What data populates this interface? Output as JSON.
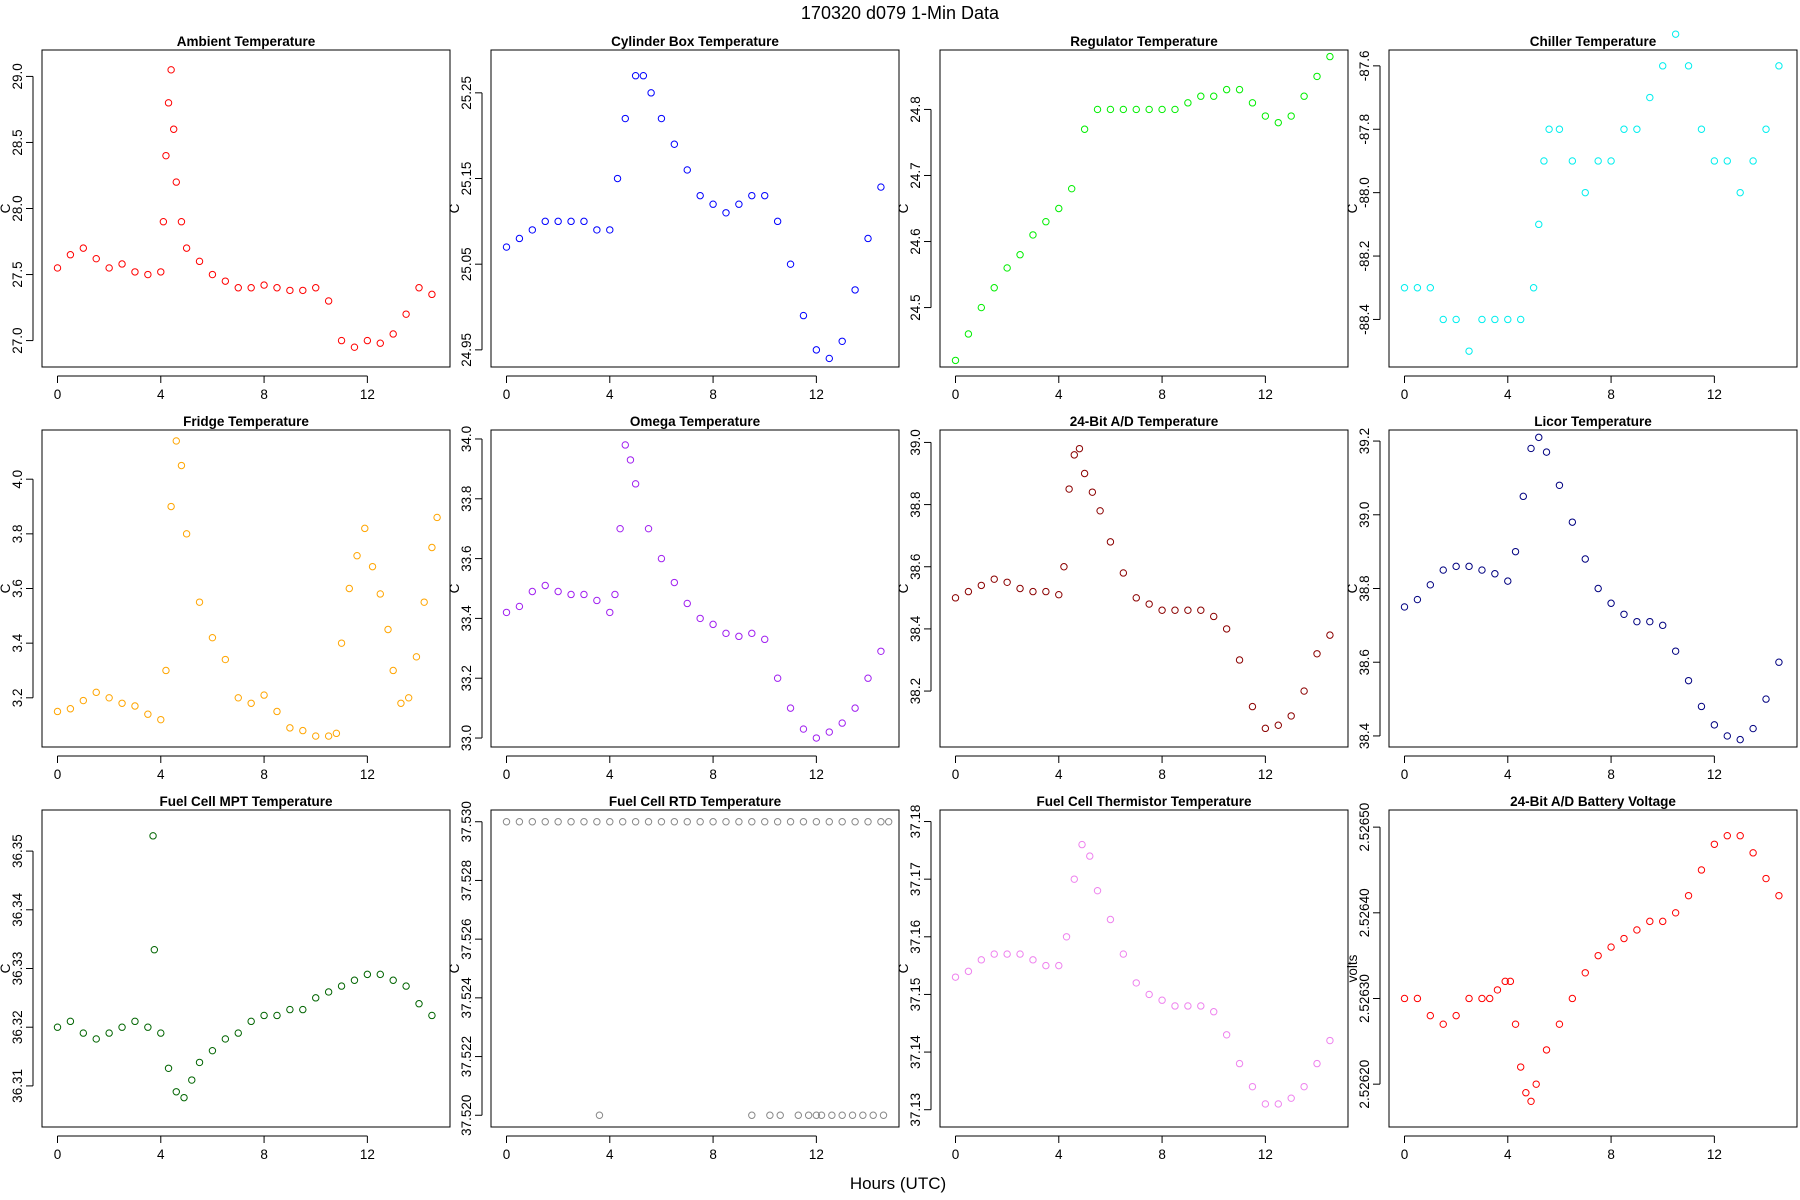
{
  "figure": {
    "title": "170320   d079   1-Min Data",
    "xlabel": "Hours (UTC)"
  },
  "chart_data": [
    {
      "type": "scatter",
      "title": "Ambient Temperature",
      "ylabel": "C",
      "color": "#ff0000",
      "xlim": [
        -0.6,
        15.2
      ],
      "ylim": [
        26.8,
        29.2
      ],
      "xticks": [
        0,
        4,
        8,
        12
      ],
      "yticks": [
        27.0,
        27.5,
        28.0,
        28.5,
        29.0
      ],
      "ytick_labels": [
        "27.0",
        "27.5",
        "28.0",
        "28.5",
        "29.0"
      ],
      "x": [
        0,
        0.5,
        1,
        1.5,
        2,
        2.5,
        3,
        3.5,
        4,
        4.1,
        4.2,
        4.3,
        4.4,
        4.5,
        4.6,
        4.8,
        5,
        5.5,
        6,
        6.5,
        7,
        7.5,
        8,
        8.5,
        9,
        9.5,
        10,
        10.5,
        11,
        11.5,
        12,
        12.5,
        13,
        13.5,
        14,
        14.5
      ],
      "y": [
        27.55,
        27.65,
        27.7,
        27.62,
        27.55,
        27.58,
        27.52,
        27.5,
        27.52,
        27.9,
        28.4,
        28.8,
        29.05,
        28.6,
        28.2,
        27.9,
        27.7,
        27.6,
        27.5,
        27.45,
        27.4,
        27.4,
        27.42,
        27.4,
        27.38,
        27.38,
        27.4,
        27.3,
        27.0,
        26.95,
        27.0,
        26.98,
        27.05,
        27.2,
        27.4,
        27.35
      ]
    },
    {
      "type": "scatter",
      "title": "Cylinder Box Temperature",
      "ylabel": "C",
      "color": "#0000ff",
      "xlim": [
        -0.6,
        15.2
      ],
      "ylim": [
        24.93,
        25.3
      ],
      "xticks": [
        0,
        4,
        8,
        12
      ],
      "yticks": [
        24.95,
        25.05,
        25.15,
        25.25
      ],
      "ytick_labels": [
        "24.95",
        "25.05",
        "25.15",
        "25.25"
      ],
      "x": [
        0,
        0.5,
        1,
        1.5,
        2,
        2.5,
        3,
        3.5,
        4,
        4.3,
        4.6,
        5,
        5.3,
        5.6,
        6,
        6.5,
        7,
        7.5,
        8,
        8.5,
        9,
        9.5,
        10,
        10.5,
        11,
        11.5,
        12,
        12.5,
        13,
        13.5,
        14,
        14.5
      ],
      "y": [
        25.07,
        25.08,
        25.09,
        25.1,
        25.1,
        25.1,
        25.1,
        25.09,
        25.09,
        25.15,
        25.22,
        25.27,
        25.27,
        25.25,
        25.22,
        25.19,
        25.16,
        25.13,
        25.12,
        25.11,
        25.12,
        25.13,
        25.13,
        25.1,
        25.05,
        24.99,
        24.95,
        24.94,
        24.96,
        25.02,
        25.08,
        25.14
      ]
    },
    {
      "type": "scatter",
      "title": "Regulator Temperature",
      "ylabel": "C",
      "color": "#00ee00",
      "xlim": [
        -0.6,
        15.2
      ],
      "ylim": [
        24.41,
        24.89
      ],
      "xticks": [
        0,
        4,
        8,
        12
      ],
      "yticks": [
        24.5,
        24.6,
        24.7,
        24.8
      ],
      "ytick_labels": [
        "24.5",
        "24.6",
        "24.7",
        "24.8"
      ],
      "x": [
        0,
        0.5,
        1,
        1.5,
        2,
        2.5,
        3,
        3.5,
        4,
        4.5,
        5,
        5.5,
        6,
        6.5,
        7,
        7.5,
        8,
        8.5,
        9,
        9.5,
        10,
        10.5,
        11,
        11.5,
        12,
        12.5,
        13,
        13.5,
        14,
        14.5
      ],
      "y": [
        24.42,
        24.46,
        24.5,
        24.53,
        24.56,
        24.58,
        24.61,
        24.63,
        24.65,
        24.68,
        24.77,
        24.8,
        24.8,
        24.8,
        24.8,
        24.8,
        24.8,
        24.8,
        24.81,
        24.82,
        24.82,
        24.83,
        24.83,
        24.81,
        24.79,
        24.78,
        24.79,
        24.82,
        24.85,
        24.88
      ]
    },
    {
      "type": "scatter",
      "title": "Chiller Temperature",
      "ylabel": "C",
      "color": "#00eeee",
      "xlim": [
        -0.6,
        15.2
      ],
      "ylim": [
        -88.55,
        -87.55
      ],
      "xticks": [
        0,
        4,
        8,
        12
      ],
      "yticks": [
        -88.4,
        -88.2,
        -88.0,
        -87.8,
        -87.6
      ],
      "ytick_labels": [
        "-88.4",
        "-88.2",
        "-88.0",
        "-87.8",
        "-87.6"
      ],
      "x": [
        0,
        0.5,
        1,
        1.5,
        2,
        2.5,
        3,
        3.5,
        4,
        4.5,
        5,
        5.2,
        5.4,
        5.6,
        6,
        6.5,
        7,
        7.5,
        8,
        8.5,
        9,
        9.5,
        10,
        10.5,
        11,
        11.5,
        12,
        12.5,
        13,
        13.5,
        14,
        14.5
      ],
      "y": [
        -88.3,
        -88.3,
        -88.3,
        -88.4,
        -88.4,
        -88.5,
        -88.4,
        -88.4,
        -88.4,
        -88.4,
        -88.3,
        -88.1,
        -87.9,
        -87.8,
        -87.8,
        -87.9,
        -88.0,
        -87.9,
        -87.9,
        -87.8,
        -87.8,
        -87.7,
        -87.6,
        -87.5,
        -87.6,
        -87.8,
        -87.9,
        -87.9,
        -88.0,
        -87.9,
        -87.8,
        -87.6
      ]
    },
    {
      "type": "scatter",
      "title": "Fridge Temperature",
      "ylabel": "C",
      "color": "#ffa500",
      "xlim": [
        -0.6,
        15.2
      ],
      "ylim": [
        3.02,
        4.18
      ],
      "xticks": [
        0,
        4,
        8,
        12
      ],
      "yticks": [
        3.2,
        3.4,
        3.6,
        3.8,
        4.0
      ],
      "ytick_labels": [
        "3.2",
        "3.4",
        "3.6",
        "3.8",
        "4.0"
      ],
      "x": [
        0,
        0.5,
        1,
        1.5,
        2,
        2.5,
        3,
        3.5,
        4,
        4.2,
        4.4,
        4.6,
        4.8,
        5,
        5.5,
        6,
        6.5,
        7,
        7.5,
        8,
        8.5,
        9,
        9.5,
        10,
        10.5,
        10.8,
        11,
        11.3,
        11.6,
        11.9,
        12.2,
        12.5,
        12.8,
        13,
        13.3,
        13.6,
        13.9,
        14.2,
        14.5,
        14.7
      ],
      "y": [
        3.15,
        3.16,
        3.19,
        3.22,
        3.2,
        3.18,
        3.17,
        3.14,
        3.12,
        3.3,
        3.9,
        4.14,
        4.05,
        3.8,
        3.55,
        3.42,
        3.34,
        3.2,
        3.18,
        3.21,
        3.15,
        3.09,
        3.08,
        3.06,
        3.06,
        3.07,
        3.4,
        3.6,
        3.72,
        3.82,
        3.68,
        3.58,
        3.45,
        3.3,
        3.18,
        3.2,
        3.35,
        3.55,
        3.75,
        3.86
      ]
    },
    {
      "type": "scatter",
      "title": "Omega Temperature",
      "ylabel": "C",
      "color": "#a020f0",
      "xlim": [
        -0.6,
        15.2
      ],
      "ylim": [
        32.97,
        34.03
      ],
      "xticks": [
        0,
        4,
        8,
        12
      ],
      "yticks": [
        33.0,
        33.2,
        33.4,
        33.6,
        33.8,
        34.0
      ],
      "ytick_labels": [
        "33.0",
        "33.2",
        "33.4",
        "33.6",
        "33.8",
        "34.0"
      ],
      "x": [
        0,
        0.5,
        1,
        1.5,
        2,
        2.5,
        3,
        3.5,
        4,
        4.2,
        4.4,
        4.6,
        4.8,
        5,
        5.5,
        6,
        6.5,
        7,
        7.5,
        8,
        8.5,
        9,
        9.5,
        10,
        10.5,
        11,
        11.5,
        12,
        12.5,
        13,
        13.5,
        14,
        14.5
      ],
      "y": [
        33.42,
        33.44,
        33.49,
        33.51,
        33.49,
        33.48,
        33.48,
        33.46,
        33.42,
        33.48,
        33.7,
        33.98,
        33.93,
        33.85,
        33.7,
        33.6,
        33.52,
        33.45,
        33.4,
        33.38,
        33.35,
        33.34,
        33.35,
        33.33,
        33.2,
        33.1,
        33.03,
        33.0,
        33.02,
        33.05,
        33.1,
        33.2,
        33.29
      ]
    },
    {
      "type": "scatter",
      "title": "24-Bit A/D Temperature",
      "ylabel": "C",
      "color": "#8b0000",
      "xlim": [
        -0.6,
        15.2
      ],
      "ylim": [
        38.02,
        39.04
      ],
      "xticks": [
        0,
        4,
        8,
        12
      ],
      "yticks": [
        38.2,
        38.4,
        38.6,
        38.8,
        39.0
      ],
      "ytick_labels": [
        "38.2",
        "38.4",
        "38.6",
        "38.8",
        "39.0"
      ],
      "x": [
        0,
        0.5,
        1,
        1.5,
        2,
        2.5,
        3,
        3.5,
        4,
        4.2,
        4.4,
        4.6,
        4.8,
        5,
        5.3,
        5.6,
        6,
        6.5,
        7,
        7.5,
        8,
        8.5,
        9,
        9.5,
        10,
        10.5,
        11,
        11.5,
        12,
        12.5,
        13,
        13.5,
        14,
        14.5
      ],
      "y": [
        38.5,
        38.52,
        38.54,
        38.56,
        38.55,
        38.53,
        38.52,
        38.52,
        38.51,
        38.6,
        38.85,
        38.96,
        38.98,
        38.9,
        38.84,
        38.78,
        38.68,
        38.58,
        38.5,
        38.48,
        38.46,
        38.46,
        38.46,
        38.46,
        38.44,
        38.4,
        38.3,
        38.15,
        38.08,
        38.09,
        38.12,
        38.2,
        38.32,
        38.38
      ]
    },
    {
      "type": "scatter",
      "title": "Licor Temperature",
      "ylabel": "C",
      "color": "#000080",
      "xlim": [
        -0.6,
        15.2
      ],
      "ylim": [
        38.37,
        39.23
      ],
      "xticks": [
        0,
        4,
        8,
        12
      ],
      "yticks": [
        38.4,
        38.6,
        38.8,
        39.0,
        39.2
      ],
      "ytick_labels": [
        "38.4",
        "38.6",
        "38.8",
        "39.0",
        "39.2"
      ],
      "x": [
        0,
        0.5,
        1,
        1.5,
        2,
        2.5,
        3,
        3.5,
        4,
        4.3,
        4.6,
        4.9,
        5.2,
        5.5,
        6,
        6.5,
        7,
        7.5,
        8,
        8.5,
        9,
        9.5,
        10,
        10.5,
        11,
        11.5,
        12,
        12.5,
        13,
        13.5,
        14,
        14.5
      ],
      "y": [
        38.75,
        38.77,
        38.81,
        38.85,
        38.86,
        38.86,
        38.85,
        38.84,
        38.82,
        38.9,
        39.05,
        39.18,
        39.21,
        39.17,
        39.08,
        38.98,
        38.88,
        38.8,
        38.76,
        38.73,
        38.71,
        38.71,
        38.7,
        38.63,
        38.55,
        38.48,
        38.43,
        38.4,
        38.39,
        38.42,
        38.5,
        38.6
      ]
    },
    {
      "type": "scatter",
      "title": "Fuel Cell MPT Temperature",
      "ylabel": "C",
      "color": "#006400",
      "xlim": [
        -0.6,
        15.2
      ],
      "ylim": [
        36.303,
        36.357
      ],
      "xticks": [
        0,
        4,
        8,
        12
      ],
      "yticks": [
        36.31,
        36.32,
        36.33,
        36.34,
        36.35
      ],
      "ytick_labels": [
        "36.31",
        "36.32",
        "36.33",
        "36.34",
        "36.35"
      ],
      "x": [
        0,
        0.5,
        1,
        1.5,
        2,
        2.5,
        3,
        3.5,
        3.7,
        3.75,
        4,
        4.3,
        4.6,
        4.9,
        5.2,
        5.5,
        6,
        6.5,
        7,
        7.5,
        8,
        8.5,
        9,
        9.5,
        10,
        10.5,
        11,
        11.5,
        12,
        12.5,
        13,
        13.5,
        14,
        14.5
      ],
      "y": [
        36.32,
        36.321,
        36.319,
        36.318,
        36.319,
        36.32,
        36.321,
        36.32,
        36.3526,
        36.3332,
        36.319,
        36.313,
        36.309,
        36.308,
        36.311,
        36.314,
        36.316,
        36.318,
        36.319,
        36.321,
        36.322,
        36.322,
        36.323,
        36.323,
        36.325,
        36.326,
        36.327,
        36.328,
        36.329,
        36.329,
        36.328,
        36.327,
        36.324,
        36.322
      ]
    },
    {
      "type": "scatter",
      "title": "Fuel Cell RTD Temperature",
      "ylabel": "C",
      "color": "#888888",
      "xlim": [
        -0.6,
        15.2
      ],
      "ylim": [
        37.5196,
        37.5304
      ],
      "xticks": [
        0,
        4,
        8,
        12
      ],
      "yticks": [
        37.52,
        37.522,
        37.524,
        37.526,
        37.528,
        37.53
      ],
      "ytick_labels": [
        "37.520",
        "37.522",
        "37.524",
        "37.526",
        "37.528",
        "37.530"
      ],
      "x": [
        0,
        0.5,
        1,
        1.5,
        2,
        2.5,
        3,
        3.5,
        4,
        4.5,
        5,
        5.5,
        6,
        6.5,
        7,
        7.5,
        8,
        8.5,
        9,
        9.5,
        10,
        10.5,
        11,
        11.5,
        12,
        12.5,
        13,
        13.5,
        14,
        14.5,
        14.8,
        3.6,
        9.5,
        10.2,
        10.6,
        11.3,
        11.7,
        12.0,
        12.2,
        12.6,
        13.0,
        13.4,
        13.8,
        14.2,
        14.6
      ],
      "y": [
        37.53,
        37.53,
        37.53,
        37.53,
        37.53,
        37.53,
        37.53,
        37.53,
        37.53,
        37.53,
        37.53,
        37.53,
        37.53,
        37.53,
        37.53,
        37.53,
        37.53,
        37.53,
        37.53,
        37.53,
        37.53,
        37.53,
        37.53,
        37.53,
        37.53,
        37.53,
        37.53,
        37.53,
        37.53,
        37.53,
        37.53,
        37.52,
        37.52,
        37.52,
        37.52,
        37.52,
        37.52,
        37.52,
        37.52,
        37.52,
        37.52,
        37.52,
        37.52,
        37.52,
        37.52
      ]
    },
    {
      "type": "scatter",
      "title": "Fuel Cell Thermistor Temperature",
      "ylabel": "C",
      "color": "#ee82ee",
      "xlim": [
        -0.6,
        15.2
      ],
      "ylim": [
        37.127,
        37.182
      ],
      "xticks": [
        0,
        4,
        8,
        12
      ],
      "yticks": [
        37.13,
        37.14,
        37.15,
        37.16,
        37.17,
        37.18
      ],
      "ytick_labels": [
        "37.13",
        "37.14",
        "37.15",
        "37.16",
        "37.17",
        "37.18"
      ],
      "x": [
        0,
        0.5,
        1,
        1.5,
        2,
        2.5,
        3,
        3.5,
        4,
        4.3,
        4.6,
        4.9,
        5.2,
        5.5,
        6,
        6.5,
        7,
        7.5,
        8,
        8.5,
        9,
        9.5,
        10,
        10.5,
        11,
        11.5,
        12,
        12.5,
        13,
        13.5,
        14,
        14.5
      ],
      "y": [
        37.153,
        37.154,
        37.156,
        37.157,
        37.157,
        37.157,
        37.156,
        37.155,
        37.155,
        37.16,
        37.17,
        37.176,
        37.174,
        37.168,
        37.163,
        37.157,
        37.152,
        37.15,
        37.149,
        37.148,
        37.148,
        37.148,
        37.147,
        37.143,
        37.138,
        37.134,
        37.131,
        37.131,
        37.132,
        37.134,
        37.138,
        37.142
      ]
    },
    {
      "type": "scatter",
      "title": "24-Bit A/D Battery Voltage",
      "ylabel": "volts",
      "color": "#ff0000",
      "xlim": [
        -0.6,
        15.2
      ],
      "ylim": [
        2.52615,
        2.52652
      ],
      "xticks": [
        0,
        4,
        8,
        12
      ],
      "yticks": [
        2.5262,
        2.5263,
        2.5264,
        2.5265
      ],
      "ytick_labels": [
        "2.52620",
        "2.52630",
        "2.52640",
        "2.52650"
      ],
      "x": [
        0,
        0.5,
        1,
        1.5,
        2,
        2.5,
        3,
        3.3,
        3.6,
        3.9,
        4.1,
        4.3,
        4.5,
        4.7,
        4.9,
        5.1,
        5.5,
        6,
        6.5,
        7,
        7.5,
        8,
        8.5,
        9,
        9.5,
        10,
        10.5,
        11,
        11.5,
        12,
        12.5,
        13,
        13.5,
        14,
        14.5
      ],
      "y": [
        2.5263,
        2.5263,
        2.52628,
        2.52627,
        2.52628,
        2.5263,
        2.5263,
        2.5263,
        2.52631,
        2.52632,
        2.52632,
        2.52627,
        2.52622,
        2.52619,
        2.52618,
        2.5262,
        2.52624,
        2.52627,
        2.5263,
        2.52633,
        2.52635,
        2.52636,
        2.52637,
        2.52638,
        2.52639,
        2.52639,
        2.5264,
        2.52642,
        2.52645,
        2.52648,
        2.52649,
        2.52649,
        2.52647,
        2.52644,
        2.52642
      ]
    }
  ]
}
